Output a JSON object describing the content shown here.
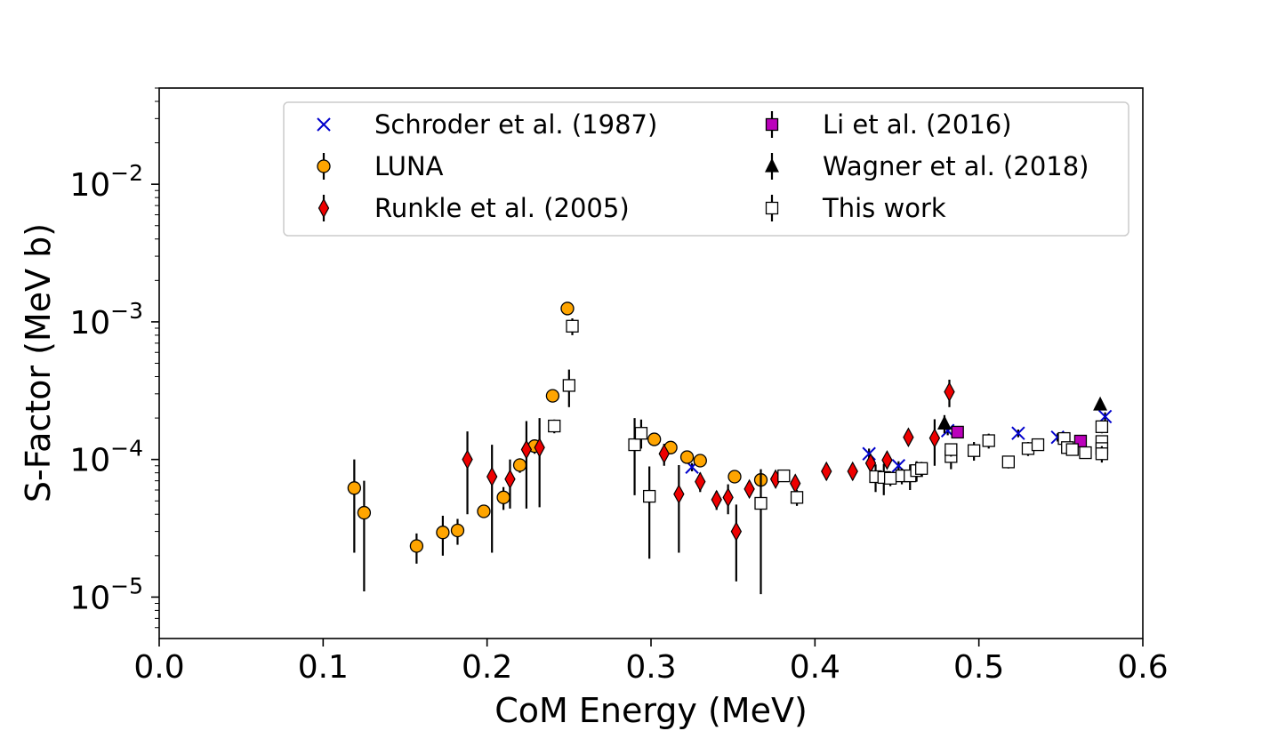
{
  "chart_data": {
    "type": "scatter",
    "xlabel": "CoM Energy (MeV)",
    "ylabel": "S-Factor (MeV b)",
    "xlim": [
      0.0,
      0.6
    ],
    "ylim": [
      5e-06,
      0.05
    ],
    "yscale": "log",
    "grid": false,
    "legend_position": "top",
    "x_ticks": [
      {
        "value": 0.0,
        "label": "0.0"
      },
      {
        "value": 0.1,
        "label": "0.1"
      },
      {
        "value": 0.2,
        "label": "0.2"
      },
      {
        "value": 0.3,
        "label": "0.3"
      },
      {
        "value": 0.4,
        "label": "0.4"
      },
      {
        "value": 0.5,
        "label": "0.5"
      },
      {
        "value": 0.6,
        "label": "0.6"
      }
    ],
    "y_ticks": [
      {
        "value": 1e-05,
        "base": "10",
        "exp": "−5"
      },
      {
        "value": 0.0001,
        "base": "10",
        "exp": "−4"
      },
      {
        "value": 0.001,
        "base": "10",
        "exp": "−3"
      },
      {
        "value": 0.01,
        "base": "10",
        "exp": "−2"
      }
    ],
    "series": [
      {
        "name": "Schroder et al. (1987)",
        "marker": "x",
        "color": "#0000cc",
        "points": [
          {
            "x": 0.325,
            "y": 8.8e-05,
            "lo": 8.2e-05,
            "hi": 9.4e-05
          },
          {
            "x": 0.433,
            "y": 0.00011,
            "lo": 0.0001,
            "hi": 0.00012
          },
          {
            "x": 0.451,
            "y": 9e-05,
            "lo": 8.3e-05,
            "hi": 9.7e-05
          },
          {
            "x": 0.481,
            "y": 0.000162,
            "lo": 0.00015,
            "hi": 0.000175
          },
          {
            "x": 0.524,
            "y": 0.000155,
            "lo": 0.000145,
            "hi": 0.000165
          },
          {
            "x": 0.548,
            "y": 0.000145,
            "lo": 0.000135,
            "hi": 0.000155
          },
          {
            "x": 0.577,
            "y": 0.000205,
            "lo": 0.00019,
            "hi": 0.00022
          }
        ]
      },
      {
        "name": "LUNA",
        "marker": "circle",
        "color": "#ffa500",
        "points": [
          {
            "x": 0.119,
            "y": 6.2e-05,
            "lo": 2.1e-05,
            "hi": 0.0001
          },
          {
            "x": 0.125,
            "y": 4.1e-05,
            "lo": 1.1e-05,
            "hi": 7e-05
          },
          {
            "x": 0.157,
            "y": 2.35e-05,
            "lo": 1.75e-05,
            "hi": 2.9e-05
          },
          {
            "x": 0.173,
            "y": 2.95e-05,
            "lo": 2e-05,
            "hi": 3.9e-05
          },
          {
            "x": 0.182,
            "y": 3.05e-05,
            "lo": 2.4e-05,
            "hi": 3.7e-05
          },
          {
            "x": 0.198,
            "y": 4.2e-05,
            "lo": 3.8e-05,
            "hi": 4.6e-05
          },
          {
            "x": 0.21,
            "y": 5.3e-05,
            "lo": 4.3e-05,
            "hi": 6.3e-05
          },
          {
            "x": 0.22,
            "y": 9.1e-05,
            "lo": 8e-05,
            "hi": 0.000102
          },
          {
            "x": 0.229,
            "y": 0.000125,
            "lo": 0.00011,
            "hi": 0.00014
          },
          {
            "x": 0.24,
            "y": 0.00029,
            "lo": 0.00027,
            "hi": 0.00031
          },
          {
            "x": 0.249,
            "y": 0.00125,
            "lo": 0.0012,
            "hi": 0.0013
          },
          {
            "x": 0.302,
            "y": 0.00014,
            "lo": 0.00013,
            "hi": 0.00015
          },
          {
            "x": 0.312,
            "y": 0.000122,
            "lo": 0.000114,
            "hi": 0.00013
          },
          {
            "x": 0.322,
            "y": 0.000104,
            "lo": 9.6e-05,
            "hi": 0.000112
          },
          {
            "x": 0.33,
            "y": 9.8e-05,
            "lo": 9e-05,
            "hi": 0.000106
          },
          {
            "x": 0.351,
            "y": 7.5e-05,
            "lo": 6.9e-05,
            "hi": 8.1e-05
          },
          {
            "x": 0.367,
            "y": 7.1e-05,
            "lo": 6.4e-05,
            "hi": 7.8e-05
          }
        ]
      },
      {
        "name": "Runkle et al. (2005)",
        "marker": "diamond",
        "color": "#ee0000",
        "points": [
          {
            "x": 0.188,
            "y": 0.0001,
            "lo": 4e-05,
            "hi": 0.00016
          },
          {
            "x": 0.203,
            "y": 7.5e-05,
            "lo": 2.1e-05,
            "hi": 0.000128
          },
          {
            "x": 0.214,
            "y": 7.2e-05,
            "lo": 4.4e-05,
            "hi": 0.0001
          },
          {
            "x": 0.224,
            "y": 0.000118,
            "lo": 4.4e-05,
            "hi": 0.00019
          },
          {
            "x": 0.232,
            "y": 0.000122,
            "lo": 4.5e-05,
            "hi": 0.0002
          },
          {
            "x": 0.308,
            "y": 0.00011,
            "lo": 9e-05,
            "hi": 0.00013
          },
          {
            "x": 0.317,
            "y": 5.6e-05,
            "lo": 2.1e-05,
            "hi": 9.1e-05
          },
          {
            "x": 0.33,
            "y": 6.9e-05,
            "lo": 5.8e-05,
            "hi": 8e-05
          },
          {
            "x": 0.34,
            "y": 5.1e-05,
            "lo": 4.3e-05,
            "hi": 5.9e-05
          },
          {
            "x": 0.347,
            "y": 5.3e-05,
            "lo": 4e-05,
            "hi": 6.6e-05
          },
          {
            "x": 0.352,
            "y": 3e-05,
            "lo": 1.3e-05,
            "hi": 4.7e-05
          },
          {
            "x": 0.36,
            "y": 6.1e-05,
            "lo": 5.3e-05,
            "hi": 6.9e-05
          },
          {
            "x": 0.376,
            "y": 7.2e-05,
            "lo": 6.3e-05,
            "hi": 8.1e-05
          },
          {
            "x": 0.388,
            "y": 6.7e-05,
            "lo": 6.1e-05,
            "hi": 7.3e-05
          },
          {
            "x": 0.407,
            "y": 8.2e-05,
            "lo": 7.1e-05,
            "hi": 9.3e-05
          },
          {
            "x": 0.423,
            "y": 8.2e-05,
            "lo": 7.1e-05,
            "hi": 9.3e-05
          },
          {
            "x": 0.434,
            "y": 9.4e-05,
            "lo": 8.4e-05,
            "hi": 0.000104
          },
          {
            "x": 0.444,
            "y": 9.9e-05,
            "lo": 8.7e-05,
            "hi": 0.000111
          },
          {
            "x": 0.457,
            "y": 0.000145,
            "lo": 0.000127,
            "hi": 0.000163
          },
          {
            "x": 0.473,
            "y": 0.000143,
            "lo": 9e-05,
            "hi": 0.000196
          },
          {
            "x": 0.482,
            "y": 0.00031,
            "lo": 0.00024,
            "hi": 0.00038
          }
        ]
      },
      {
        "name": "Li et al. (2016)",
        "marker": "square",
        "color": "#bb00bb",
        "points": [
          {
            "x": 0.487,
            "y": 0.000158,
            "lo": 0.00015,
            "hi": 0.000166
          },
          {
            "x": 0.562,
            "y": 0.000136,
            "lo": 0.000128,
            "hi": 0.000144
          }
        ]
      },
      {
        "name": "Wagner et al. (2018)",
        "marker": "triangle",
        "color": "#000000",
        "points": [
          {
            "x": 0.479,
            "y": 0.000182,
            "lo": 0.000155,
            "hi": 0.00021
          },
          {
            "x": 0.574,
            "y": 0.00025,
            "lo": 0.00023,
            "hi": 0.00027
          }
        ]
      },
      {
        "name": "This work",
        "marker": "open-square",
        "color": "#ffffff",
        "points": [
          {
            "x": 0.241,
            "y": 0.000175,
            "lo": 0.000155,
            "hi": 0.000195
          },
          {
            "x": 0.25,
            "y": 0.000345,
            "lo": 0.00024,
            "hi": 0.00045
          },
          {
            "x": 0.252,
            "y": 0.00093,
            "lo": 0.0008,
            "hi": 0.00106
          },
          {
            "x": 0.29,
            "y": 0.000128,
            "lo": 5.5e-05,
            "hi": 0.0002
          },
          {
            "x": 0.294,
            "y": 0.000155,
            "lo": 0.00012,
            "hi": 0.000195
          },
          {
            "x": 0.299,
            "y": 5.4e-05,
            "lo": 1.9e-05,
            "hi": 8.9e-05
          },
          {
            "x": 0.367,
            "y": 4.8e-05,
            "lo": 1.05e-05,
            "hi": 8.5e-05
          },
          {
            "x": 0.381,
            "y": 7.6e-05,
            "lo": 7e-05,
            "hi": 8.2e-05
          },
          {
            "x": 0.389,
            "y": 5.3e-05,
            "lo": 4.6e-05,
            "hi": 6e-05
          },
          {
            "x": 0.437,
            "y": 7.5e-05,
            "lo": 5.8e-05,
            "hi": 9.2e-05
          },
          {
            "x": 0.442,
            "y": 7.4e-05,
            "lo": 5.5e-05,
            "hi": 9.3e-05
          },
          {
            "x": 0.446,
            "y": 7.3e-05,
            "lo": 6.4e-05,
            "hi": 8.2e-05
          },
          {
            "x": 0.453,
            "y": 7.6e-05,
            "lo": 6.6e-05,
            "hi": 8.6e-05
          },
          {
            "x": 0.458,
            "y": 7.6e-05,
            "lo": 6e-05,
            "hi": 9.2e-05
          },
          {
            "x": 0.462,
            "y": 8.3e-05,
            "lo": 6.9e-05,
            "hi": 9.7e-05
          },
          {
            "x": 0.465,
            "y": 8.6e-05,
            "lo": 7.6e-05,
            "hi": 9.6e-05
          },
          {
            "x": 0.483,
            "y": 0.000105,
            "lo": 8.5e-05,
            "hi": 0.000125
          },
          {
            "x": 0.483,
            "y": 0.000118,
            "lo": 0.000105,
            "hi": 0.000131
          },
          {
            "x": 0.497,
            "y": 0.000116,
            "lo": 9.8e-05,
            "hi": 0.000134
          },
          {
            "x": 0.506,
            "y": 0.000137,
            "lo": 0.00012,
            "hi": 0.000154
          },
          {
            "x": 0.518,
            "y": 9.6e-05,
            "lo": 8.6e-05,
            "hi": 0.000106
          },
          {
            "x": 0.53,
            "y": 0.00012,
            "lo": 0.000106,
            "hi": 0.000134
          },
          {
            "x": 0.536,
            "y": 0.000128,
            "lo": 0.000116,
            "hi": 0.00014
          },
          {
            "x": 0.552,
            "y": 0.000142,
            "lo": 0.000134,
            "hi": 0.00015
          },
          {
            "x": 0.554,
            "y": 0.000122,
            "lo": 0.000115,
            "hi": 0.000129
          },
          {
            "x": 0.557,
            "y": 0.000118,
            "lo": 0.00011,
            "hi": 0.000126
          },
          {
            "x": 0.565,
            "y": 0.000112,
            "lo": 0.000105,
            "hi": 0.000119
          },
          {
            "x": 0.575,
            "y": 0.000173,
            "lo": 0.000155,
            "hi": 0.000191
          },
          {
            "x": 0.575,
            "y": 0.000135,
            "lo": 0.000123,
            "hi": 0.000147
          },
          {
            "x": 0.575,
            "y": 0.00012,
            "lo": 0.00011,
            "hi": 0.00013
          },
          {
            "x": 0.575,
            "y": 0.00011,
            "lo": 9.5e-05,
            "hi": 0.000125
          }
        ]
      }
    ]
  }
}
